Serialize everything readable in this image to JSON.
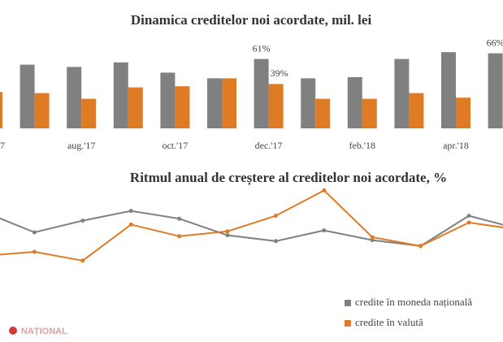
{
  "chart_data": [
    {
      "type": "bar",
      "title": "Dinamica creditelor noi acordate, mil. lei",
      "categories": [
        "7",
        null,
        "aug.'17",
        null,
        "oct.'17",
        null,
        "dec.'17",
        null,
        "feb.'18",
        null,
        "apr.'18",
        null
      ],
      "ylim": [
        0,
        80
      ],
      "series": [
        {
          "name": "credite în moneda națională",
          "color": "#808080",
          "values": [
            null,
            56,
            54,
            58,
            49,
            44,
            61,
            44,
            45,
            61,
            67,
            66
          ],
          "value_labels": [
            null,
            null,
            null,
            null,
            null,
            null,
            "61%",
            null,
            null,
            null,
            null,
            "66%"
          ]
        },
        {
          "name": "credite în valută",
          "color": "#e07b25",
          "values": [
            32,
            31,
            26,
            36,
            37,
            44,
            39,
            26,
            26,
            31,
            27,
            null
          ],
          "value_labels": [
            null,
            null,
            null,
            null,
            null,
            null,
            "39%",
            null,
            null,
            null,
            null,
            null
          ]
        }
      ]
    },
    {
      "type": "line",
      "title": "Ritmul anual de creștere al creditelor noi acordate, %",
      "ylim": [
        0,
        100
      ],
      "series": [
        {
          "name": "credite în moneda națională",
          "color": "#808080",
          "values": [
            65,
            45,
            57,
            67,
            59,
            42,
            36,
            47,
            37,
            31,
            62,
            49
          ]
        },
        {
          "name": "credite în valută",
          "color": "#e07b25",
          "values": [
            21,
            25,
            16,
            53,
            41,
            46,
            62,
            88,
            40,
            31,
            55,
            48
          ]
        }
      ],
      "legend": "bottom-right"
    }
  ],
  "watermark": "NAȚIONAL"
}
